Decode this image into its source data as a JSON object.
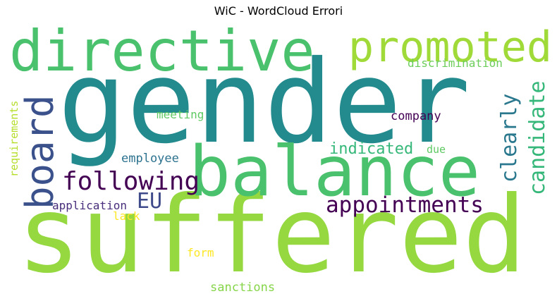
{
  "title": "WiC - WordCloud Errori",
  "words": [
    {
      "text": "gender",
      "color": "#238a8d"
    },
    {
      "text": "suffered",
      "color": "#95d840"
    },
    {
      "text": "directive",
      "color": "#4ac16d"
    },
    {
      "text": "balance",
      "color": "#4ac16d"
    },
    {
      "text": "promoted",
      "color": "#a0da39"
    },
    {
      "text": "board",
      "color": "#3b518b"
    },
    {
      "text": "candidate",
      "color": "#35b779"
    },
    {
      "text": "clearly",
      "color": "#2a788e"
    },
    {
      "text": "following",
      "color": "#440154"
    },
    {
      "text": "appointments",
      "color": "#440154"
    },
    {
      "text": "EU",
      "color": "#3e4a89"
    },
    {
      "text": "indicated",
      "color": "#35b779"
    },
    {
      "text": "discrimination",
      "color": "#6ccd5a"
    },
    {
      "text": "meeting",
      "color": "#5ec962"
    },
    {
      "text": "company",
      "color": "#440154"
    },
    {
      "text": "employee",
      "color": "#2c728e"
    },
    {
      "text": "due",
      "color": "#5ec962"
    },
    {
      "text": "requirements",
      "color": "#b5de2b"
    },
    {
      "text": "application",
      "color": "#472d7b"
    },
    {
      "text": "lack",
      "color": "#fde725"
    },
    {
      "text": "form",
      "color": "#fde725"
    },
    {
      "text": "sanctions",
      "color": "#86d549"
    }
  ]
}
